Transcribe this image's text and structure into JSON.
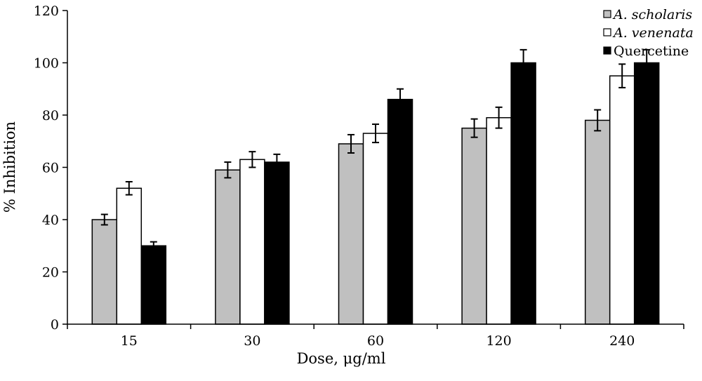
{
  "chart_data": {
    "type": "bar",
    "title": "",
    "xlabel": "Dose, μg/ml",
    "ylabel": "% Inhibition",
    "categories": [
      "15",
      "30",
      "60",
      "120",
      "240"
    ],
    "ylim": [
      0,
      120
    ],
    "yticks": [
      0,
      20,
      40,
      60,
      80,
      100,
      120
    ],
    "grid": false,
    "legend_position": "top-right",
    "series": [
      {
        "name": "A. scholaris",
        "italic": true,
        "color": "#c0c0c0",
        "values": [
          40,
          59,
          69,
          75,
          78
        ],
        "errors": [
          2,
          3,
          3.5,
          3.5,
          4
        ]
      },
      {
        "name": "A. venenata",
        "italic": true,
        "color": "#ffffff",
        "values": [
          52,
          63,
          73,
          79,
          95
        ],
        "errors": [
          2.5,
          3,
          3.5,
          4,
          4.5
        ]
      },
      {
        "name": "Quercetine",
        "italic": false,
        "color": "#000000",
        "values": [
          30,
          62,
          86,
          100,
          100
        ],
        "errors": [
          1.5,
          3,
          4,
          5,
          5
        ]
      }
    ]
  }
}
